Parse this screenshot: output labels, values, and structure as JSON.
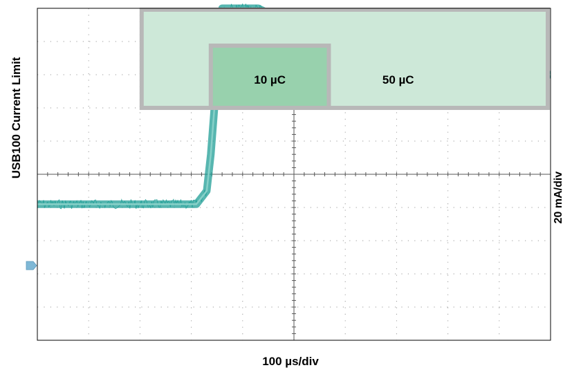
{
  "chart_data": {
    "type": "line",
    "title": "",
    "ylabel": "USB100 Current Limit",
    "xlabel": "100 µs/div",
    "yscale_label": "20 mA/div",
    "x_divisions": 10,
    "y_divisions": 10,
    "grid": true,
    "xlim": [
      0,
      1000
    ],
    "ylim": [
      -100,
      100
    ],
    "x_unit": "µs",
    "y_unit": "mA",
    "series": [
      {
        "color": "#1f9e96",
        "x": [
          0,
          310,
          330,
          338,
          350,
          360,
          410,
          430,
          700,
          1000
        ],
        "y": [
          -18,
          -18,
          -10,
          12,
          60,
          100,
          100,
          100,
          60,
          60
        ]
      }
    ],
    "annotations": [
      {
        "label": "10 µC",
        "x_range": [
          338,
          568
        ]
      },
      {
        "label": "50 µC",
        "x_range": [
          568,
          1000
        ]
      }
    ],
    "colors": {
      "trace": "#1f9e96",
      "outer_box_fill": "#cde8d8",
      "inner_box_fill": "#98d1ad",
      "box_border": "#b8b8b8",
      "grid_tick": "#9a9a9a"
    }
  }
}
